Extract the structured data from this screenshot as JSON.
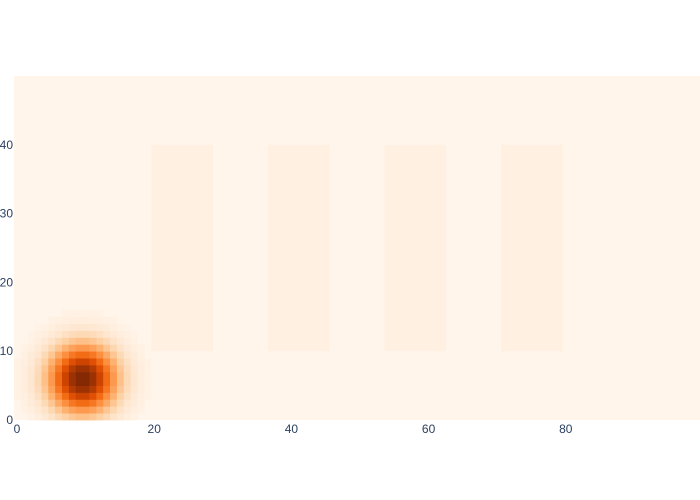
{
  "chart_data": {
    "type": "heatmap",
    "colorscale": [
      "#fff5eb",
      "#fee6ce",
      "#fdd0a2",
      "#fdae6b",
      "#fd8d3c",
      "#f16913",
      "#d94801",
      "#a63603",
      "#7f2704"
    ],
    "xlim": [
      0,
      100
    ],
    "ylim": [
      0,
      50
    ],
    "x_ticks": [
      0,
      20,
      40,
      60,
      80
    ],
    "y_ticks": [
      0,
      10,
      20,
      30,
      40
    ],
    "grid": false,
    "background_level": 0.0,
    "hotspot": {
      "x": 10,
      "y": 6,
      "peak": 1.0,
      "sigma": 3.6
    },
    "bands": [
      {
        "x_range": [
          20,
          29
        ],
        "y_range": [
          10,
          40
        ],
        "level": 0.04
      },
      {
        "x_range": [
          37,
          46
        ],
        "y_range": [
          10,
          40
        ],
        "level": 0.04
      },
      {
        "x_range": [
          54,
          63
        ],
        "y_range": [
          10,
          40
        ],
        "level": 0.04
      },
      {
        "x_range": [
          71,
          80
        ],
        "y_range": [
          10,
          40
        ],
        "level": 0.04
      }
    ]
  }
}
